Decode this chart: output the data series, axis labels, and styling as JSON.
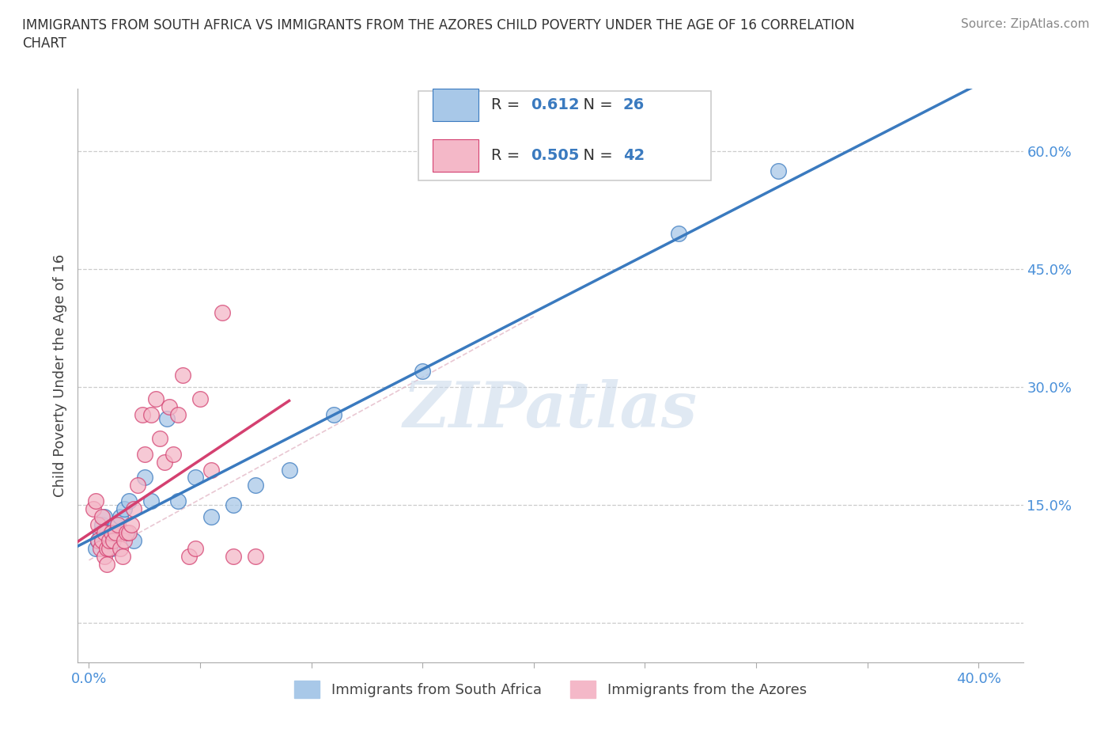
{
  "title_line1": "IMMIGRANTS FROM SOUTH AFRICA VS IMMIGRANTS FROM THE AZORES CHILD POVERTY UNDER THE AGE OF 16 CORRELATION",
  "title_line2": "CHART",
  "source": "Source: ZipAtlas.com",
  "ylabel": "Child Poverty Under the Age of 16",
  "R_blue": 0.612,
  "N_blue": 26,
  "R_pink": 0.505,
  "N_pink": 42,
  "blue_color": "#a8c8e8",
  "pink_color": "#f4b8c8",
  "blue_line_color": "#3a7abf",
  "pink_line_color": "#d44070",
  "dash_line_color": "#d0a0b0",
  "watermark": "ZIPatlas",
  "legend_label_blue": "Immigrants from South Africa",
  "legend_label_pink": "Immigrants from the Azores",
  "tick_color": "#4a90d9",
  "xlim": [
    -0.005,
    0.42
  ],
  "ylim": [
    -0.05,
    0.68
  ],
  "blue_scatter_x": [
    0.003,
    0.004,
    0.005,
    0.006,
    0.007,
    0.008,
    0.009,
    0.01,
    0.012,
    0.014,
    0.016,
    0.018,
    0.02,
    0.025,
    0.028,
    0.035,
    0.04,
    0.048,
    0.055,
    0.065,
    0.075,
    0.09,
    0.11,
    0.15,
    0.265,
    0.31
  ],
  "blue_scatter_y": [
    0.095,
    0.105,
    0.115,
    0.125,
    0.135,
    0.115,
    0.105,
    0.095,
    0.125,
    0.135,
    0.145,
    0.155,
    0.105,
    0.185,
    0.155,
    0.26,
    0.155,
    0.185,
    0.135,
    0.15,
    0.175,
    0.195,
    0.265,
    0.32,
    0.495,
    0.575
  ],
  "pink_scatter_x": [
    0.002,
    0.003,
    0.004,
    0.004,
    0.005,
    0.006,
    0.006,
    0.007,
    0.007,
    0.008,
    0.008,
    0.009,
    0.009,
    0.01,
    0.011,
    0.012,
    0.013,
    0.014,
    0.015,
    0.016,
    0.017,
    0.018,
    0.019,
    0.02,
    0.022,
    0.024,
    0.025,
    0.028,
    0.03,
    0.032,
    0.034,
    0.036,
    0.038,
    0.04,
    0.042,
    0.045,
    0.048,
    0.05,
    0.055,
    0.06,
    0.065,
    0.075
  ],
  "pink_scatter_y": [
    0.145,
    0.155,
    0.105,
    0.125,
    0.095,
    0.105,
    0.135,
    0.085,
    0.115,
    0.075,
    0.095,
    0.095,
    0.105,
    0.115,
    0.105,
    0.115,
    0.125,
    0.095,
    0.085,
    0.105,
    0.115,
    0.115,
    0.125,
    0.145,
    0.175,
    0.265,
    0.215,
    0.265,
    0.285,
    0.235,
    0.205,
    0.275,
    0.215,
    0.265,
    0.315,
    0.085,
    0.095,
    0.285,
    0.195,
    0.395,
    0.085,
    0.085
  ]
}
